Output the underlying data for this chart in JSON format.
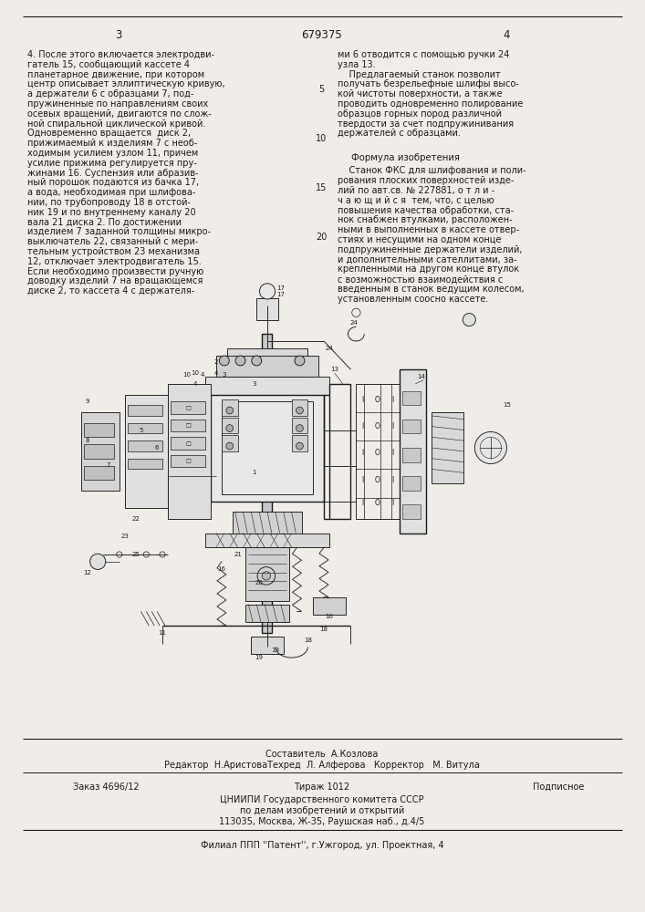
{
  "page_number_center": "679375",
  "page_left": "3",
  "page_right": "4",
  "background_color": "#f0ede8",
  "text_color": "#1a1a1a",
  "left_column_text": [
    "4. После этого включается электродви-",
    "гатель 15, сообщающий кассете 4",
    "планетарное движение, при котором",
    "центр описывает эллиптическую кривую,",
    "а держатели 6 с образцами 7, под-",
    "пружиненные по направлениям своих",
    "осевых вращений, двигаются по слож-",
    "ной спиральной циклической кривой.",
    "Одновременно вращается  диск 2,",
    "прижимаемый к изделиям 7 с необ-",
    "ходимым усилием узлом 11, причем",
    "усилие прижима регулируется пру-",
    "жинами 16. Суспензия или абразив-",
    "ный порошок подаются из бачка 17,",
    "а вода, необходимая при шлифова-",
    "нии, по трубопроводу 18 в отстой-",
    "ник 19 и по внутреннему каналу 20",
    "вала 21 диска 2. По достижении",
    "изделием 7 заданной толщины микро-",
    "выключатель 22, связанный с мери-",
    "тельным устройством 23 механизма",
    "12, отключает электродвигатель 15.",
    "Если необходимо произвести ручную",
    "доводку изделий 7 на вращающемся",
    "диске 2, то кассета 4 с держателя-"
  ],
  "right_column_text_top": [
    "ми 6 отводится с помощью ручки 24",
    "узла 13.",
    "    Предлагаемый станок позволит",
    "получать безрельефные шлифы высо-",
    "кой чистоты поверхности, а также",
    "проводить одновременно полирование",
    "образцов горных пород различной",
    "твердости за счет подпружинивания",
    "держателей с образцами."
  ],
  "formula_title": "Формула изобретения",
  "formula_text": [
    "    Станок ФКС для шлифования и поли-",
    "рования плоских поверхностей изде-",
    "лий по авт.св. № 227881, о т л и -",
    "ч а ю щ и й с я  тем, что, с целью",
    "повышения качества обработки, ста-",
    "нок снабжен втулками, расположен-",
    "ными в выполненных в кассете отвер-",
    "стиях и несущими на одном конце",
    "подпружиненные держатели изделий,",
    "и дополнительными сателлитами, за-",
    "крепленными на другом конце втулок",
    "с возможностью взаимодействия с",
    "введенным в станок ведущим колесом,",
    "установленным соосно кассете."
  ],
  "footer_line1": "Составитель  А.Козлова",
  "footer_line2": "Редактор  Н.АристоваТехред  Л. Алферова   Корректор   М. Витула",
  "footer_line3a": "Заказ 4696/12",
  "footer_line3b": "Тираж 1012",
  "footer_line3c": "Подписное",
  "footer_line4": "ЦНИИПИ Государственного комитета СССР",
  "footer_line5": "по делам изобретений и открытий",
  "footer_line6": "113035, Москва, Ж-35, Раушская наб., д.4/5",
  "footer_line7": "Филиал ППП ''Патент'', г.Ужгород, ул. Проектная, 4"
}
